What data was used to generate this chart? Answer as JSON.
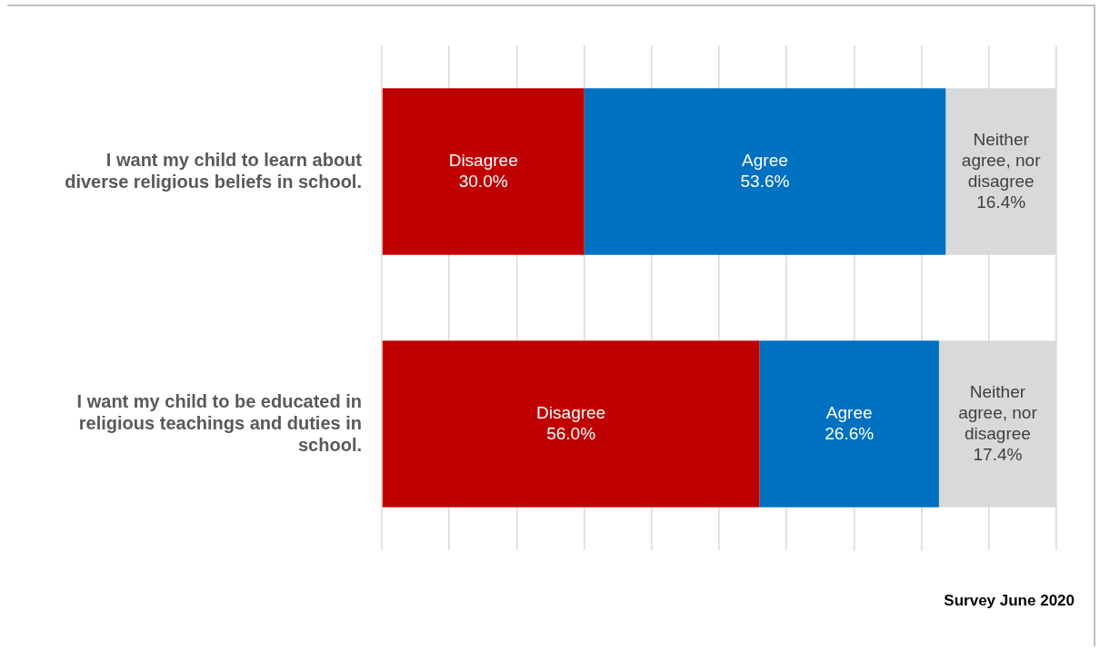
{
  "chart_data": {
    "type": "bar",
    "orientation": "horizontal",
    "stacked": true,
    "categories": [
      "I want my child to learn about diverse religious beliefs in school.",
      "I want my child to be educated in religious teachings and duties in school."
    ],
    "series": [
      {
        "name": "Disagree",
        "color": "#c00000",
        "values": [
          30.0,
          56.0
        ],
        "value_labels": [
          "30.0%",
          "56.0%"
        ]
      },
      {
        "name": "Agree",
        "color": "#0070c0",
        "values": [
          53.6,
          26.6
        ],
        "value_labels": [
          "53.6%",
          "26.6%"
        ]
      },
      {
        "name": "Neither agree, nor disagree",
        "color": "#d9d9d9",
        "values": [
          16.4,
          17.4
        ],
        "value_labels": [
          "16.4%",
          "17.4%"
        ]
      }
    ],
    "xlim": [
      0,
      100
    ],
    "xticks": [
      {
        "value": 0,
        "label": null
      },
      {
        "value": 10,
        "label": null
      },
      {
        "value": 20,
        "label": null
      },
      {
        "value": 30,
        "label": null
      },
      {
        "value": 40,
        "label": null
      },
      {
        "value": 50,
        "label": null
      },
      {
        "value": 60,
        "label": null
      },
      {
        "value": 70,
        "label": null
      },
      {
        "value": 80,
        "label": null
      },
      {
        "value": 90,
        "label": null
      },
      {
        "value": 100,
        "label": null
      }
    ],
    "grid": "x",
    "legend": false,
    "tick_labels": "y",
    "annotations": [
      "Survey June 2020"
    ]
  }
}
